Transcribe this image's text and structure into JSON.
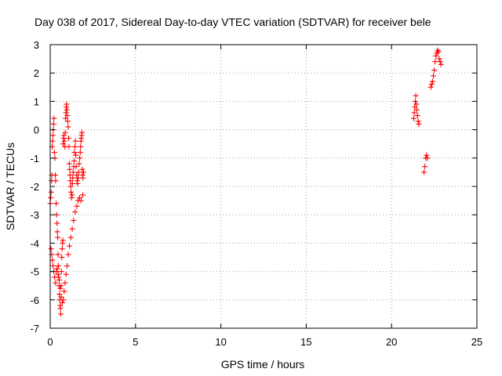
{
  "chart_data": {
    "type": "scatter",
    "title": "Day 038 of 2017, Sidereal Day-to-day VTEC variation (SDTVAR) for receiver bele",
    "xlabel": "GPS time / hours",
    "ylabel": "SDTVAR / TECUs",
    "xlim": [
      0,
      25
    ],
    "ylim": [
      -7,
      3
    ],
    "xticks": [
      0,
      5,
      10,
      15,
      20,
      25
    ],
    "yticks": [
      -7,
      -6,
      -5,
      -4,
      -3,
      -2,
      -1,
      0,
      1,
      2,
      3
    ],
    "grid": true,
    "marker": "+",
    "color": "#ff0000",
    "series": [
      {
        "name": "SDTVAR",
        "x": [
          0.0,
          0.03,
          0.06,
          0.08,
          0.1,
          0.12,
          0.14,
          0.16,
          0.18,
          0.2,
          0.22,
          0.25,
          0.28,
          0.3,
          0.32,
          0.35,
          0.37,
          0.4,
          0.42,
          0.44,
          0.46,
          0.48,
          0.5,
          0.52,
          0.54,
          0.56,
          0.58,
          0.6,
          0.62,
          0.64,
          0.66,
          0.68,
          0.7,
          0.72,
          0.74,
          0.76,
          0.78,
          0.8,
          0.83,
          0.86,
          0.88,
          0.9,
          0.92,
          0.94,
          0.96,
          0.98,
          1.0,
          1.03,
          1.05,
          1.08,
          1.1,
          1.12,
          1.14,
          1.16,
          1.18,
          1.2,
          1.22,
          1.25,
          1.28,
          1.3,
          1.32,
          1.35,
          1.38,
          1.4,
          1.42,
          1.45,
          1.48,
          1.5,
          1.52,
          1.55,
          1.58,
          1.6,
          1.63,
          1.66,
          1.7,
          1.73,
          1.76,
          1.78,
          1.8,
          1.82,
          1.84,
          1.86,
          1.88,
          1.9,
          1.92,
          1.95,
          0.05,
          0.09,
          0.13,
          0.17,
          0.21,
          0.26,
          0.31,
          0.36,
          0.41,
          0.47,
          0.53,
          0.59,
          0.65,
          0.71,
          0.77,
          0.82,
          0.87,
          0.93,
          0.99,
          1.06,
          1.13,
          1.21,
          1.29,
          1.37,
          1.46,
          1.56,
          1.64,
          1.72,
          1.81,
          1.91,
          21.3,
          21.33,
          21.36,
          21.39,
          21.42,
          21.45,
          21.48,
          21.52,
          21.56,
          21.6,
          21.9,
          21.95,
          22.0,
          22.05,
          22.1,
          22.3,
          22.35,
          22.4,
          22.45,
          22.5,
          22.55,
          22.6,
          22.65,
          22.7,
          22.75,
          22.8,
          22.85,
          22.9
        ],
        "y": [
          -2.6,
          -2.4,
          -2.2,
          -1.8,
          -1.6,
          -0.6,
          -0.4,
          -0.2,
          0.0,
          0.2,
          0.4,
          -0.8,
          -1.0,
          -1.6,
          -1.8,
          -2.6,
          -3.0,
          -3.3,
          -3.6,
          -3.8,
          -4.4,
          -4.8,
          -5.2,
          -5.5,
          -5.8,
          -6.0,
          -6.2,
          -6.3,
          -6.5,
          -5.5,
          -5.0,
          -4.5,
          -4.2,
          -4.0,
          -3.9,
          -0.5,
          -0.3,
          -0.2,
          -0.4,
          -0.6,
          -0.1,
          0.4,
          0.6,
          0.8,
          0.9,
          0.7,
          0.5,
          0.3,
          0.1,
          -0.3,
          -0.6,
          -1.2,
          -1.4,
          -1.6,
          -1.8,
          -2.0,
          -2.2,
          -2.4,
          -2.3,
          -1.9,
          -1.7,
          -1.5,
          -1.3,
          -1.1,
          -0.8,
          -0.6,
          -0.4,
          -0.9,
          -1.3,
          -1.6,
          -1.8,
          -1.9,
          -1.7,
          -1.5,
          -1.2,
          -1.0,
          -0.8,
          -0.6,
          -0.4,
          -0.3,
          -0.2,
          -0.1,
          -1.4,
          -1.6,
          -1.7,
          -1.5,
          -4.2,
          -4.4,
          -4.6,
          -4.8,
          -5.0,
          -5.2,
          -5.4,
          -5.0,
          -4.9,
          -5.1,
          -5.3,
          -5.6,
          -5.9,
          -6.1,
          -6.0,
          -5.7,
          -5.4,
          -5.1,
          -4.8,
          -4.4,
          -4.1,
          -3.8,
          -3.5,
          -3.2,
          -2.9,
          -2.7,
          -2.5,
          -2.4,
          -2.5,
          -2.3,
          0.4,
          0.6,
          0.8,
          1.0,
          1.2,
          0.9,
          0.7,
          0.5,
          0.3,
          0.2,
          -1.5,
          -1.3,
          -1.0,
          -0.9,
          -1.0,
          1.5,
          1.6,
          1.7,
          1.9,
          2.1,
          2.4,
          2.6,
          2.7,
          2.8,
          2.75,
          2.5,
          2.4,
          2.3
        ]
      }
    ]
  }
}
